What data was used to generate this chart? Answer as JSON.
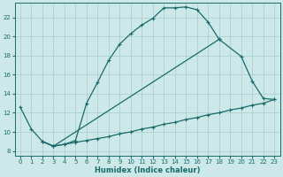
{
  "xlabel": "Humidex (Indice chaleur)",
  "bg_color": "#cce8e8",
  "grid_color": "#aacccc",
  "line_color": "#1a6b6b",
  "xlim": [
    -0.5,
    23.5
  ],
  "ylim": [
    7.5,
    23.5
  ],
  "xticks": [
    0,
    1,
    2,
    3,
    4,
    5,
    6,
    7,
    8,
    9,
    10,
    11,
    12,
    13,
    14,
    15,
    16,
    17,
    18,
    19,
    20,
    21,
    22,
    23
  ],
  "yticks": [
    8,
    10,
    12,
    14,
    16,
    18,
    20,
    22
  ],
  "line1_x": [
    0,
    1,
    2,
    3,
    4,
    5,
    6,
    7,
    8,
    9,
    10,
    11,
    12,
    13,
    14,
    15,
    16,
    17,
    18
  ],
  "line1_y": [
    12.6,
    10.3,
    9.0,
    8.5,
    8.7,
    9.1,
    13.0,
    15.2,
    17.5,
    19.2,
    20.3,
    21.2,
    21.9,
    23.0,
    23.0,
    23.1,
    22.8,
    21.5,
    19.7
  ],
  "line2_x": [
    2,
    3,
    4,
    5,
    6,
    7,
    8,
    9,
    10,
    11,
    12,
    13,
    14,
    15,
    16,
    17,
    18,
    19,
    20,
    21,
    22,
    23
  ],
  "line2_y": [
    9.0,
    8.5,
    8.7,
    8.9,
    9.1,
    9.3,
    9.5,
    9.8,
    10.0,
    10.3,
    10.5,
    10.8,
    11.0,
    11.3,
    11.5,
    11.8,
    12.0,
    12.3,
    12.5,
    12.8,
    13.0,
    13.4
  ],
  "line3_x": [
    2,
    3,
    18,
    20,
    21,
    22,
    23
  ],
  "line3_y": [
    9.0,
    8.5,
    19.7,
    17.9,
    15.3,
    13.5,
    13.4
  ],
  "markersize": 3,
  "linewidth": 0.9
}
